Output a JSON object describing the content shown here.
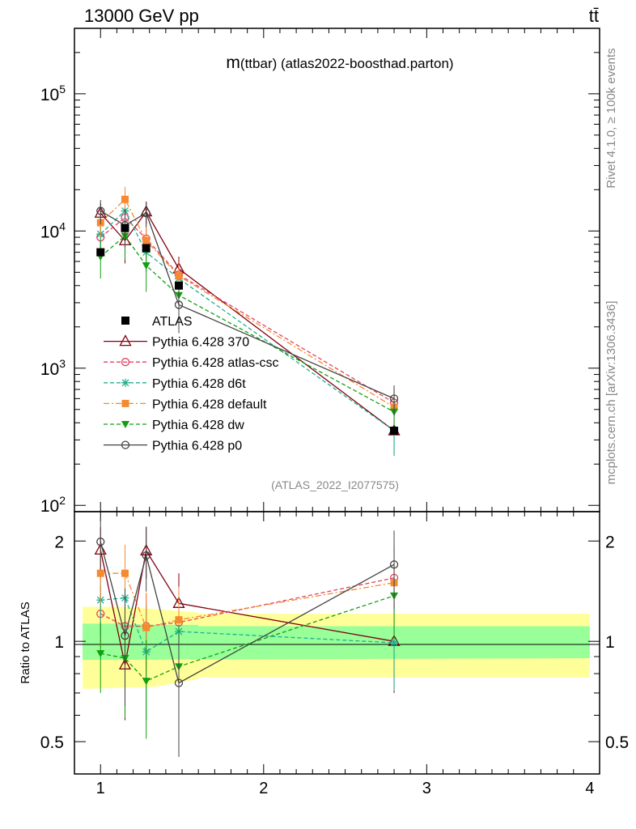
{
  "header": {
    "energy_label": "13000 GeV pp",
    "process_label": "tt̄"
  },
  "side_text": {
    "rivet": "Rivet 4.1.0, ≥ 100k events",
    "mcplots": "mcplots.cern.ch [arXiv:1306.3436]"
  },
  "chart_data": {
    "type": "line",
    "title": "m(ttbar) (atlas2022-boosthad.parton)",
    "title_prefix": "m",
    "title_rest": "(ttbar) (atlas2022-boosthad.parton)",
    "analysis_id": "(ATLAS_2022_I2077575)",
    "xlabel": "",
    "ylabel": "",
    "ratio_ylabel": "Ratio to ATLAS",
    "xlim": [
      0.84,
      4.06
    ],
    "ylim": [
      90,
      300000
    ],
    "ratio_ylim": [
      0.4,
      2.45
    ],
    "x_ticks": [
      "1",
      "2",
      "3",
      "4"
    ],
    "y_ticks": [
      {
        "base": "10",
        "exp": "2"
      },
      {
        "base": "10",
        "exp": "3"
      },
      {
        "base": "10",
        "exp": "4"
      },
      {
        "base": "10",
        "exp": "5"
      }
    ],
    "ratio_ticks": [
      "0.5",
      "1",
      "2"
    ],
    "ratio_bands": {
      "inner": [
        [
          0.89,
          1.13
        ],
        [
          1.13,
          1.13
        ],
        [
          1.33,
          1.12
        ],
        [
          1.6,
          1.12
        ],
        [
          1.6,
          1.11
        ],
        [
          4.0,
          1.11
        ]
      ],
      "outer": [
        [
          0.89,
          1.27
        ],
        [
          1.13,
          1.27
        ],
        [
          1.33,
          1.25
        ],
        [
          1.6,
          1.22
        ],
        [
          1.6,
          1.21
        ],
        [
          4.0,
          1.21
        ]
      ],
      "inner_low": [
        [
          0.89,
          0.88
        ],
        [
          4.0,
          0.89
        ]
      ],
      "outer_low": [
        [
          0.89,
          0.72
        ],
        [
          1.33,
          0.73
        ],
        [
          1.6,
          0.77
        ],
        [
          1.6,
          0.78
        ],
        [
          4.0,
          0.78
        ]
      ]
    },
    "x": [
      1.0,
      1.15,
      1.28,
      1.48,
      2.8
    ],
    "series": [
      {
        "name": "ATLAS",
        "marker": "square",
        "color": "#000000",
        "dash": "",
        "is_data": true,
        "values": [
          7000,
          10500,
          7500,
          4000,
          350
        ],
        "errors": [
          0,
          0,
          0,
          0,
          0
        ]
      },
      {
        "name": "Pythia 6.428 370",
        "marker": "triangle-open",
        "color": "#800010",
        "dash": "",
        "values": [
          13500,
          8500,
          13800,
          5300,
          350
        ],
        "errors": [
          2500,
          2700,
          2600,
          1200,
          120
        ]
      },
      {
        "name": "Pythia 6.428 atlas-csc",
        "marker": "circle-open",
        "color": "#e64060",
        "dash": "5,3",
        "values": [
          9000,
          12500,
          8800,
          4800,
          560
        ],
        "errors": [
          2000,
          3500,
          2200,
          1100,
          150
        ]
      },
      {
        "name": "Pythia 6.428 d6t",
        "marker": "star",
        "color": "#20b090",
        "dash": "5,3",
        "values": [
          9500,
          14000,
          7000,
          4500,
          350
        ],
        "errors": [
          2200,
          3500,
          2000,
          1000,
          120
        ]
      },
      {
        "name": "Pythia 6.428 default",
        "marker": "square-filled",
        "color": "#f58a30",
        "dash": "7,3,2,3",
        "values": [
          11500,
          17000,
          8500,
          4700,
          520
        ],
        "errors": [
          2500,
          4000,
          2200,
          1100,
          140
        ]
      },
      {
        "name": "Pythia 6.428 dw",
        "marker": "triangle-down",
        "color": "#10a010",
        "dash": "5,3",
        "values": [
          6500,
          9200,
          5600,
          3400,
          480
        ],
        "errors": [
          2000,
          3000,
          2000,
          900,
          130
        ]
      },
      {
        "name": "Pythia 6.428 p0",
        "marker": "circle-open",
        "color": "#444444",
        "dash": "",
        "values": [
          14000,
          11000,
          13500,
          2900,
          600
        ],
        "errors": [
          2800,
          3500,
          2800,
          1100,
          150
        ]
      }
    ],
    "ratio_series": [
      {
        "name": "Pythia 6.428 370",
        "values": [
          1.88,
          0.85,
          1.87,
          1.3,
          1.0
        ],
        "errors": [
          0.32,
          0.27,
          0.33,
          0.3,
          0.3
        ]
      },
      {
        "name": "Pythia 6.428 atlas-csc",
        "values": [
          1.21,
          1.11,
          1.11,
          1.14,
          1.55
        ],
        "errors": [
          0.25,
          0.3,
          0.28,
          0.3,
          0.38
        ]
      },
      {
        "name": "Pythia 6.428 d6t",
        "values": [
          1.33,
          1.35,
          0.93,
          1.07,
          0.99
        ],
        "errors": [
          0.28,
          0.3,
          0.35,
          0.27,
          0.28
        ]
      },
      {
        "name": "Pythia 6.428 default",
        "values": [
          1.6,
          1.6,
          1.1,
          1.16,
          1.5
        ],
        "errors": [
          0.3,
          0.35,
          0.3,
          0.3,
          0.36
        ]
      },
      {
        "name": "Pythia 6.428 dw",
        "values": [
          0.92,
          0.89,
          0.76,
          0.84,
          1.37
        ],
        "errors": [
          0.22,
          0.3,
          0.25,
          0.28,
          0.35
        ]
      },
      {
        "name": "Pythia 6.428 p0",
        "values": [
          1.99,
          1.04,
          1.81,
          0.75,
          1.7
        ],
        "errors": [
          0.35,
          0.4,
          0.4,
          0.3,
          0.45
        ]
      }
    ]
  }
}
